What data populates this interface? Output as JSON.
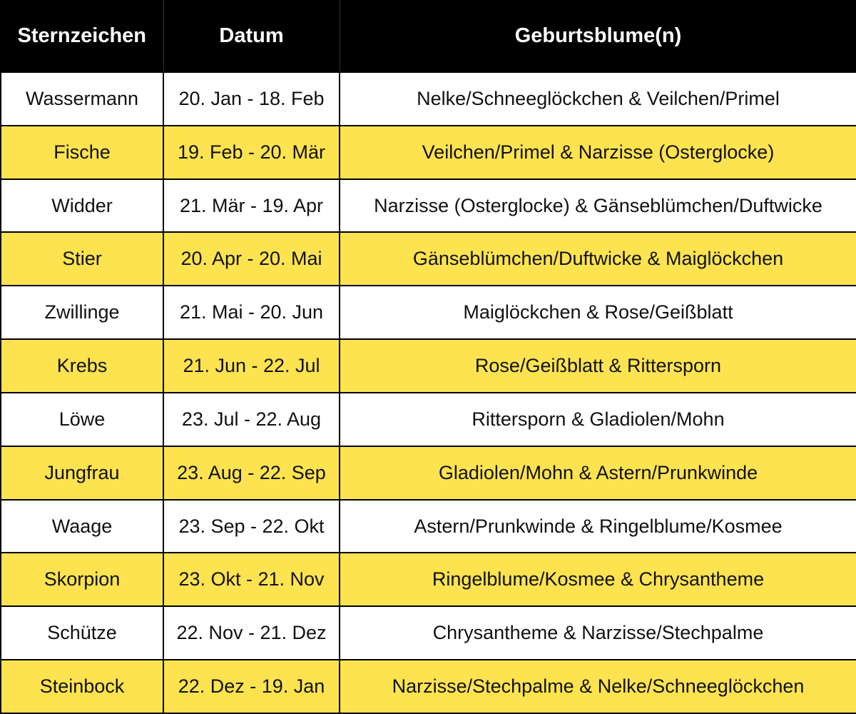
{
  "table": {
    "header": [
      "Sternzeichen",
      "Datum",
      "Geburtsblume(n)"
    ],
    "rows": [
      [
        "Wassermann",
        "20. Jan - 18. Feb",
        "Nelke/Schneeglöckchen & Veilchen/Primel"
      ],
      [
        "Fische",
        "19. Feb - 20. Mär",
        "Veilchen/Primel & Narzisse (Osterglocke)"
      ],
      [
        "Widder",
        "21. Mär - 19. Apr",
        "Narzisse (Osterglocke) & Gänseblümchen/Duftwicke"
      ],
      [
        "Stier",
        "20. Apr - 20. Mai",
        "Gänseblümchen/Duftwicke & Maiglöckchen"
      ],
      [
        "Zwillinge",
        "21. Mai - 20. Jun",
        "Maiglöckchen & Rose/Geißblatt"
      ],
      [
        "Krebs",
        "21. Jun - 22. Jul",
        "Rose/Geißblatt & Rittersporn"
      ],
      [
        "Löwe",
        "23. Jul - 22. Aug",
        "Rittersporn & Gladiolen/Mohn"
      ],
      [
        "Jungfrau",
        "23. Aug - 22. Sep",
        "Gladiolen/Mohn & Astern/Prunkwinde"
      ],
      [
        "Waage",
        "23. Sep - 22. Okt",
        "Astern/Prunkwinde & Ringelblume/Kosmee"
      ],
      [
        "Skorpion",
        "23. Okt - 21. Nov",
        "Ringelblume/Kosmee & Chrysantheme"
      ],
      [
        "Schütze",
        "22. Nov - 21. Dez",
        "Chrysantheme & Narzisse/Stechpalme"
      ],
      [
        "Steinbock",
        "22. Dez - 19. Jan",
        "Narzisse/Stechpalme & Nelke/Schneeglöckchen"
      ]
    ]
  }
}
